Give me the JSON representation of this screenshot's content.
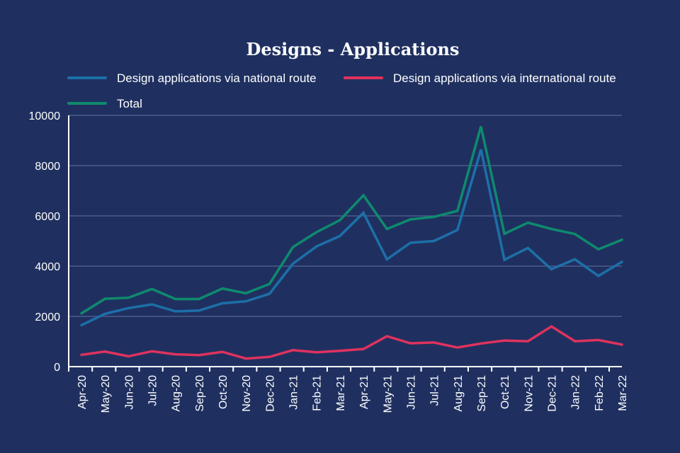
{
  "chart_data": {
    "type": "line",
    "title": "Designs - Applications",
    "xlabel": "",
    "ylabel": "",
    "ylim": [
      0,
      10000
    ],
    "yticks": [
      0,
      2000,
      4000,
      6000,
      8000,
      10000
    ],
    "grid": true,
    "legend_position": "top",
    "categories": [
      "Apr-20",
      "May-20",
      "Jun-20",
      "Jul-20",
      "Aug-20",
      "Sep-20",
      "Oct-20",
      "Nov-20",
      "Dec-20",
      "Jan-21",
      "Feb-21",
      "Mar-21",
      "Apr-21",
      "May-21",
      "Jun-21",
      "Jul-21",
      "Aug-21",
      "Sep-21",
      "Oct-21",
      "Nov-21",
      "Dec-21",
      "Jan-22",
      "Feb-22",
      "Mar-22"
    ],
    "series": [
      {
        "name": "Design applications via national route",
        "color": "#1d6fa8",
        "values": [
          1650,
          2100,
          2330,
          2480,
          2200,
          2230,
          2520,
          2600,
          2900,
          4100,
          4780,
          5200,
          6120,
          4270,
          4930,
          5000,
          5440,
          8640,
          4250,
          4720,
          3880,
          4270,
          3610,
          4170
        ]
      },
      {
        "name": "Design applications via international route",
        "color": "#e0325e",
        "values": [
          470,
          600,
          410,
          610,
          490,
          460,
          590,
          320,
          390,
          660,
          570,
          630,
          700,
          1210,
          930,
          960,
          760,
          920,
          1040,
          1010,
          1600,
          1010,
          1060,
          880
        ]
      },
      {
        "name": "Total",
        "color": "#0f8a6e",
        "values": [
          2120,
          2700,
          2740,
          3090,
          2690,
          2690,
          3110,
          2920,
          3290,
          4760,
          5350,
          5830,
          6820,
          5480,
          5860,
          5960,
          6200,
          9560,
          5290,
          5730,
          5480,
          5280,
          4670,
          5050
        ]
      }
    ]
  }
}
